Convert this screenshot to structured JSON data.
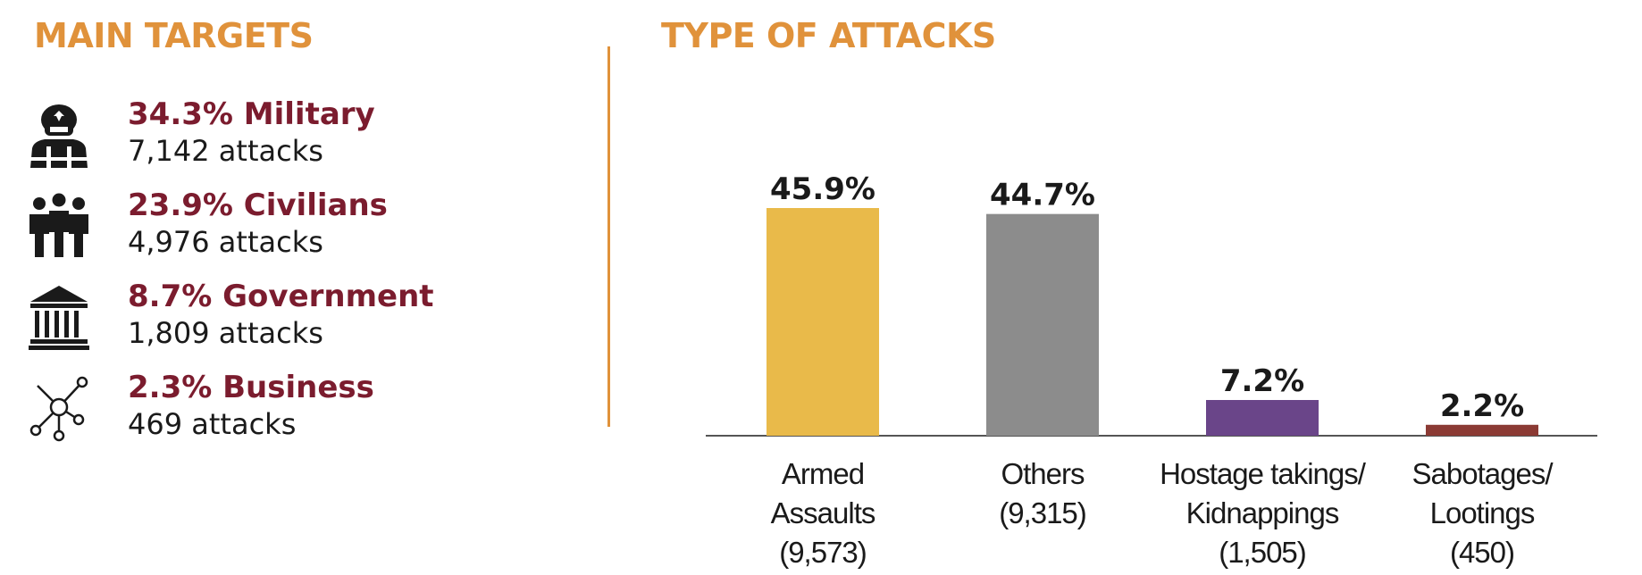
{
  "colors": {
    "heading": "#E0923B",
    "divider": "#E0923B",
    "target_title": "#7B1C2E",
    "icon": "#1a1a1a",
    "axis": "#555555"
  },
  "main_targets": {
    "heading": "MAIN TARGETS",
    "items": [
      {
        "icon": "soldier-icon",
        "title": "34.3% Military",
        "count": "7,142 attacks"
      },
      {
        "icon": "civilians-icon",
        "title": "23.9% Civilians",
        "count": "4,976 attacks"
      },
      {
        "icon": "government-building-icon",
        "title": "8.7% Government",
        "count": "1,809 attacks"
      },
      {
        "icon": "business-network-icon",
        "title": "2.3% Business",
        "count": "469 attacks"
      }
    ]
  },
  "chart_data": {
    "type": "bar",
    "title": "TYPE OF ATTACKS",
    "xlabel": "",
    "ylabel": "",
    "ylim": [
      0,
      50
    ],
    "grid": false,
    "categories": [
      [
        "Armed",
        "Assaults",
        "(9,573)"
      ],
      [
        "Others",
        "(9,315)"
      ],
      [
        "Hostage takings/",
        "Kidnappings",
        "(1,505)"
      ],
      [
        "Sabotages/",
        "Lootings",
        "(450)"
      ]
    ],
    "values": [
      45.9,
      44.7,
      7.2,
      2.2
    ],
    "value_labels": [
      "45.9%",
      "44.7%",
      "7.2%",
      "2.2%"
    ],
    "counts": [
      9573,
      9315,
      1505,
      450
    ],
    "bar_colors": [
      "#E9BA4A",
      "#8C8C8C",
      "#6A4589",
      "#8B3A34"
    ]
  }
}
